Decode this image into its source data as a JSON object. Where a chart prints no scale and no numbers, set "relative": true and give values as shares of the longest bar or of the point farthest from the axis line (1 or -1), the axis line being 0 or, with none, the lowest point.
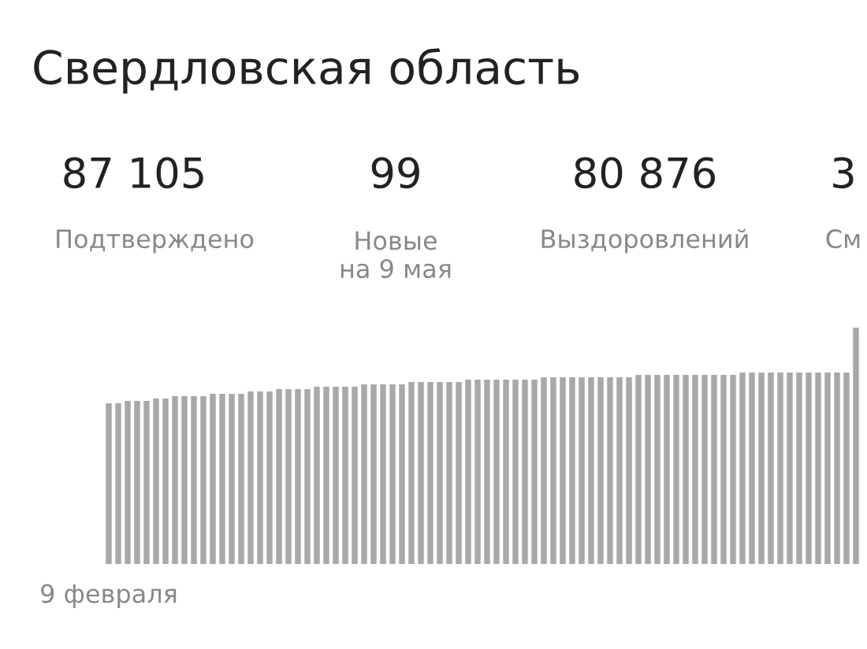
{
  "chart_data": {
    "type": "bar",
    "title": "Свердловская область",
    "relative": true,
    "color": "#a8a8a8",
    "annotations": [
      "87 105",
      "Подтверждено",
      "99",
      "Новые\nна 9 мая",
      "80 876",
      "Выздоровлений",
      "3",
      "См"
    ],
    "categories": [
      "9 февраля",
      null,
      null,
      null,
      null,
      null,
      null,
      null,
      null,
      null,
      null,
      null,
      null,
      null,
      null,
      null,
      null,
      null,
      null,
      null,
      null,
      null,
      null,
      null,
      null,
      null,
      null,
      null,
      null,
      null,
      null,
      null,
      null,
      null,
      null,
      null,
      null,
      null,
      null,
      null,
      null,
      null,
      null,
      null,
      null,
      null,
      null,
      null,
      null,
      null,
      null,
      null,
      null,
      null,
      null,
      null,
      null,
      null,
      null,
      null,
      null,
      null,
      null,
      null,
      null,
      null,
      null,
      null,
      null,
      null,
      null,
      null,
      null,
      null,
      null,
      null,
      null,
      null,
      null,
      null
    ],
    "values": [
      0.68,
      0.68,
      0.69,
      0.69,
      0.69,
      0.7,
      0.7,
      0.71,
      0.71,
      0.71,
      0.71,
      0.72,
      0.72,
      0.72,
      0.72,
      0.73,
      0.73,
      0.73,
      0.74,
      0.74,
      0.74,
      0.74,
      0.75,
      0.75,
      0.75,
      0.75,
      0.75,
      0.76,
      0.76,
      0.76,
      0.76,
      0.76,
      0.77,
      0.77,
      0.77,
      0.77,
      0.77,
      0.77,
      0.78,
      0.78,
      0.78,
      0.78,
      0.78,
      0.78,
      0.78,
      0.78,
      0.79,
      0.79,
      0.79,
      0.79,
      0.79,
      0.79,
      0.79,
      0.79,
      0.79,
      0.79,
      0.8,
      0.8,
      0.8,
      0.8,
      0.8,
      0.8,
      0.8,
      0.8,
      0.8,
      0.8,
      0.8,
      0.81,
      0.81,
      0.81,
      0.81,
      0.81,
      0.81,
      0.81,
      0.81,
      0.81,
      0.81,
      0.81,
      0.81,
      1.0
    ]
  }
}
